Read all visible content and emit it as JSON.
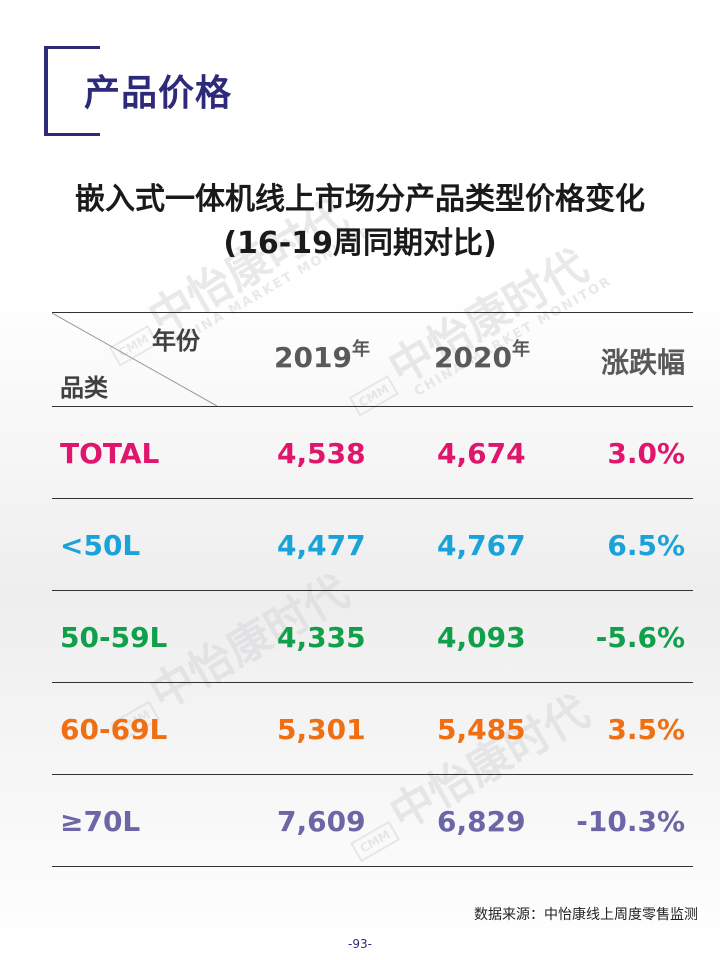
{
  "section_title": "产品价格",
  "title_line1": "嵌入式一体机线上市场分产品类型价格变化",
  "title_line2": "(16-19周同期对比)",
  "watermark": {
    "cn": "中怡康时代",
    "en": "CHINA MARKET MONITOR",
    "logo": "CMM"
  },
  "table": {
    "header": {
      "year_label": "年份",
      "category_label": "品类",
      "col_2019": "2019",
      "col_2020": "2020",
      "year_suffix": "年",
      "change": "涨跌幅"
    },
    "rows": [
      {
        "category": "TOTAL",
        "v2019": "4,538",
        "v2020": "4,674",
        "change": "3.0%",
        "color": "#e0166d"
      },
      {
        "category": "<50L",
        "v2019": "4,477",
        "v2020": "4,767",
        "change": "6.5%",
        "color": "#1aa3d9"
      },
      {
        "category": "50-59L",
        "v2019": "4,335",
        "v2020": "4,093",
        "change": "-5.6%",
        "color": "#10a04a"
      },
      {
        "category": "60-69L",
        "v2019": "5,301",
        "v2020": "5,485",
        "change": "3.5%",
        "color": "#f06f12"
      },
      {
        "category": "≥70L",
        "v2019": "7,609",
        "v2020": "6,829",
        "change": "-10.3%",
        "color": "#6b67a6"
      }
    ]
  },
  "footnote": "数据来源：中怡康线上周度零售监测",
  "page_number": "-93-"
}
